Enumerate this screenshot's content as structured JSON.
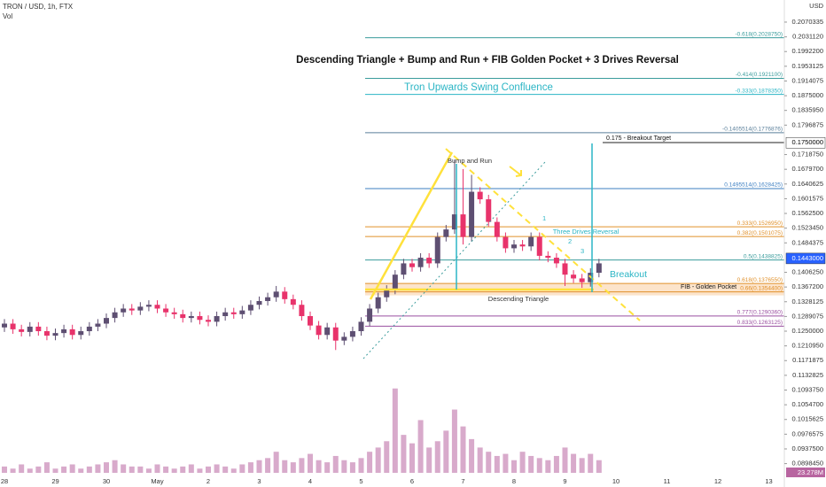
{
  "header": {
    "symbol": "TRON / USD, 1h, FTX",
    "volume": "Vol"
  },
  "chart_data": {
    "type": "candlestick",
    "title": "Descending Triangle + Bump and Run + FIB Golden Pocket + 3 Drives Reversal",
    "subtitle": "Tron Upwards Swing Confluence",
    "currency": "USD",
    "categories": [
      "28",
      null,
      null,
      null,
      null,
      null,
      "29",
      null,
      null,
      null,
      null,
      null,
      "30",
      null,
      null,
      null,
      null,
      null,
      "May",
      null,
      null,
      null,
      null,
      null,
      "2",
      null,
      null,
      null,
      null,
      null,
      "3",
      null,
      null,
      null,
      null,
      null,
      "4",
      null,
      null,
      null,
      null,
      null,
      "5",
      null,
      null,
      null,
      null,
      null,
      "6",
      null,
      null,
      null,
      null,
      null,
      "7",
      null,
      null,
      null,
      null,
      null,
      "8",
      null,
      null,
      null,
      null,
      null,
      "9",
      null,
      null,
      null,
      null,
      null,
      "10",
      null,
      null,
      null,
      null,
      null,
      "11",
      null,
      null,
      null,
      null,
      null,
      "12",
      null,
      null,
      null,
      null,
      null,
      "13",
      null
    ],
    "open": [
      0.126,
      0.127,
      0.1255,
      0.1248,
      0.1262,
      0.125,
      0.1238,
      0.1245,
      0.1255,
      0.124,
      0.125,
      0.1262,
      0.127,
      0.1285,
      0.13,
      0.131,
      0.1305,
      0.1315,
      0.132,
      0.131,
      0.13,
      0.1295,
      0.1285,
      0.129,
      0.128,
      0.1275,
      0.129,
      0.13,
      0.1295,
      0.1305,
      0.132,
      0.133,
      0.134,
      0.1355,
      0.1335,
      0.132,
      0.129,
      0.1265,
      0.124,
      0.126,
      0.1225,
      0.1235,
      0.125,
      0.1275,
      0.131,
      0.134,
      0.136,
      0.14,
      0.143,
      0.142,
      0.1445,
      0.143,
      0.15,
      0.152,
      0.156,
      0.15,
      0.162,
      0.16,
      0.154,
      0.15,
      0.147,
      0.148,
      0.1475,
      0.15,
      0.145,
      0.1445,
      0.143,
      0.14,
      0.139,
      0.138,
      0.1405,
      null,
      null,
      null,
      null,
      null,
      null,
      null,
      null,
      null,
      null,
      null,
      null,
      null,
      null,
      null,
      null,
      null,
      null,
      null,
      null,
      null
    ],
    "high": [
      0.1282,
      0.1282,
      0.1267,
      0.1274,
      0.1274,
      0.1262,
      0.1257,
      0.1267,
      0.1267,
      0.1262,
      0.1274,
      0.1282,
      0.1297,
      0.1312,
      0.1322,
      0.1322,
      0.1327,
      0.1332,
      0.1332,
      0.1322,
      0.1312,
      0.1307,
      0.1302,
      0.1302,
      0.1292,
      0.1302,
      0.1312,
      0.1312,
      0.1317,
      0.1332,
      0.1342,
      0.1352,
      0.137,
      0.1367,
      0.1347,
      0.1332,
      0.1302,
      0.1277,
      0.1272,
      0.1272,
      0.1247,
      0.1262,
      0.1287,
      0.1322,
      0.1352,
      0.1372,
      0.1412,
      0.1442,
      0.1442,
      0.1457,
      0.1457,
      0.1512,
      0.1532,
      0.1705,
      0.168,
      0.1665,
      0.1632,
      0.1612,
      0.1552,
      0.1512,
      0.1492,
      0.1492,
      0.1512,
      0.1512,
      0.1462,
      0.1457,
      0.1442,
      0.1412,
      0.1402,
      0.1417,
      0.1442,
      null,
      null,
      null,
      null,
      null,
      null,
      null,
      null,
      null,
      null,
      null,
      null,
      null,
      null,
      null,
      null,
      null,
      null,
      null,
      null,
      null
    ],
    "low": [
      0.1248,
      0.1243,
      0.1236,
      0.1236,
      0.1238,
      0.1226,
      0.1226,
      0.1233,
      0.1228,
      0.1228,
      0.1238,
      0.125,
      0.1258,
      0.1273,
      0.1288,
      0.1293,
      0.1293,
      0.1303,
      0.1298,
      0.1288,
      0.1283,
      0.1273,
      0.1273,
      0.1268,
      0.1263,
      0.1263,
      0.1278,
      0.1283,
      0.1283,
      0.1293,
      0.1308,
      0.1318,
      0.1328,
      0.1323,
      0.1308,
      0.1278,
      0.1253,
      0.1228,
      0.1228,
      0.12,
      0.1213,
      0.1223,
      0.1238,
      0.1263,
      0.1298,
      0.1328,
      0.1348,
      0.1388,
      0.1408,
      0.1408,
      0.1418,
      0.1418,
      0.1488,
      0.1508,
      0.148,
      0.1488,
      0.1588,
      0.1528,
      0.1488,
      0.1458,
      0.1458,
      0.1463,
      0.1463,
      0.1438,
      0.1433,
      0.1418,
      0.137,
      0.1378,
      0.1365,
      0.1368,
      0.1393,
      null,
      null,
      null,
      null,
      null,
      null,
      null,
      null,
      null,
      null,
      null,
      null,
      null,
      null,
      null,
      null,
      null,
      null,
      null,
      null,
      null
    ],
    "close": [
      0.127,
      0.1255,
      0.1248,
      0.1262,
      0.125,
      0.1238,
      0.1245,
      0.1255,
      0.124,
      0.125,
      0.1262,
      0.127,
      0.1285,
      0.13,
      0.131,
      0.1305,
      0.1315,
      0.132,
      0.131,
      0.13,
      0.1295,
      0.1285,
      0.129,
      0.128,
      0.1275,
      0.129,
      0.13,
      0.1295,
      0.1305,
      0.132,
      0.133,
      0.134,
      0.1355,
      0.1335,
      0.132,
      0.129,
      0.1265,
      0.124,
      0.126,
      0.1225,
      0.1235,
      0.125,
      0.1275,
      0.131,
      0.134,
      0.136,
      0.14,
      0.143,
      0.142,
      0.1445,
      0.143,
      0.15,
      0.152,
      0.156,
      0.15,
      0.162,
      0.16,
      0.154,
      0.15,
      0.147,
      0.148,
      0.1475,
      0.15,
      0.145,
      0.1445,
      0.143,
      0.14,
      0.139,
      0.138,
      0.1405,
      0.143,
      null,
      null,
      null,
      null,
      null,
      null,
      null,
      null,
      null,
      null,
      null,
      null,
      null,
      null,
      null,
      null,
      null,
      null,
      null,
      null,
      null
    ],
    "volume": [
      3,
      2,
      4,
      2,
      3,
      5,
      2,
      3,
      4,
      2,
      3,
      4,
      5,
      6,
      4,
      3,
      3,
      2,
      4,
      3,
      2,
      3,
      4,
      2,
      3,
      4,
      3,
      2,
      4,
      5,
      6,
      7,
      10,
      6,
      5,
      7,
      9,
      6,
      5,
      8,
      6,
      5,
      7,
      10,
      12,
      15,
      40,
      18,
      14,
      25,
      12,
      15,
      20,
      30,
      22,
      16,
      12,
      10,
      8,
      9,
      6,
      10,
      8,
      7,
      6,
      8,
      12,
      9,
      7,
      9,
      6,
      null,
      null,
      null,
      null,
      null,
      null,
      null,
      null,
      null,
      null,
      null,
      null,
      null,
      null,
      null,
      null,
      null,
      null,
      null,
      null,
      null
    ],
    "up_color": "#5e4f72",
    "down_color": "#e8336b",
    "volume_color": "#b865a0",
    "vlim": [
      0,
      55
    ],
    "volume_label": "23.278M",
    "ylim": [
      0.0874,
      0.2129
    ],
    "yticks": [
      {
        "value": 0.2070335,
        "label": "0.2070335"
      },
      {
        "value": 0.203112,
        "label": "0.2031120"
      },
      {
        "value": 0.19922,
        "label": "0.1992200"
      },
      {
        "value": 0.1953125,
        "label": "0.1953125"
      },
      {
        "value": 0.1914075,
        "label": "0.1914075"
      },
      {
        "value": 0.1875,
        "label": "0.1875000"
      },
      {
        "value": 0.183595,
        "label": "0.1835950"
      },
      {
        "value": 0.1796875,
        "label": "0.1796875"
      },
      {
        "value": 0.171875,
        "label": "0.1718750"
      },
      {
        "value": 0.16797,
        "label": "0.1679700"
      },
      {
        "value": 0.1640625,
        "label": "0.1640625"
      },
      {
        "value": 0.1601575,
        "label": "0.1601575"
      },
      {
        "value": 0.15625,
        "label": "0.1562500"
      },
      {
        "value": 0.152345,
        "label": "0.1523450"
      },
      {
        "value": 0.1484375,
        "label": "0.1484375"
      },
      {
        "value": 0.140625,
        "label": "0.1406250"
      },
      {
        "value": 0.13672,
        "label": "0.1367200"
      },
      {
        "value": 0.1328125,
        "label": "0.1328125"
      },
      {
        "value": 0.1289075,
        "label": "0.1289075"
      },
      {
        "value": 0.125,
        "label": "0.1250000"
      },
      {
        "value": 0.121095,
        "label": "0.1210950"
      },
      {
        "value": 0.1171875,
        "label": "0.1171875"
      },
      {
        "value": 0.1132825,
        "label": "0.1132825"
      },
      {
        "value": 0.109375,
        "label": "0.1093750"
      },
      {
        "value": 0.10547,
        "label": "0.1054700"
      },
      {
        "value": 0.1015625,
        "label": "0.1015625"
      },
      {
        "value": 0.0976575,
        "label": "0.0976575"
      },
      {
        "value": 0.09375,
        "label": "0.0937500"
      },
      {
        "value": 0.089845,
        "label": "0.0898450"
      }
    ],
    "price_labels": [
      {
        "value": 0.175,
        "label": "0.1750000",
        "color": "#ffffff",
        "text": "#000000"
      },
      {
        "value": 0.1443,
        "label": "0.1443000",
        "color": "#2962ff",
        "text": "#ffffff"
      }
    ],
    "fib_levels": [
      {
        "value": 0.202875,
        "label": "-0.618(0.2028750)",
        "color": "#3a9c9c"
      },
      {
        "value": 0.19211,
        "label": "-0.414(0.1921100)",
        "color": "#3a9c9c"
      },
      {
        "value": 0.187835,
        "label": "-0.333(0.1878350)",
        "color": "#2bb5c5"
      },
      {
        "value": 0.1776876,
        "label": "-0.1405514(0.1776876)",
        "color": "#5a7f9a"
      },
      {
        "value": 0.1628425,
        "label": "0.1495514(0.1628425)",
        "color": "#3d7fc2"
      },
      {
        "value": 0.152695,
        "label": "0.333(0.1526950)",
        "color": "#e0902a"
      },
      {
        "value": 0.1501075,
        "label": "0.382(0.1501075)",
        "color": "#e0902a"
      },
      {
        "value": 0.1438825,
        "label": "0.5(0.1438825)",
        "color": "#3a9c9c"
      },
      {
        "value": 0.137655,
        "label": "0.618(0.1376550)",
        "color": "#e0902a"
      },
      {
        "value": 0.13544,
        "label": "0.66(0.1354400)",
        "color": "#e0902a"
      },
      {
        "value": 0.129036,
        "label": "0.777(0.1290360)",
        "color": "#9a4fa0"
      },
      {
        "value": 0.1263125,
        "label": "0.833(0.1263125)",
        "color": "#9a4fa0"
      }
    ],
    "annotations": {
      "bump": "Bump and Run",
      "triangle": "Descending Triangle",
      "drives": "Three Drives Reversal",
      "d1": "1",
      "d2": "2",
      "d3": "3",
      "breakout": "Breakout",
      "pocket": "FIB - Golden Pocket",
      "target": "0.175 - Breakout Target"
    }
  }
}
